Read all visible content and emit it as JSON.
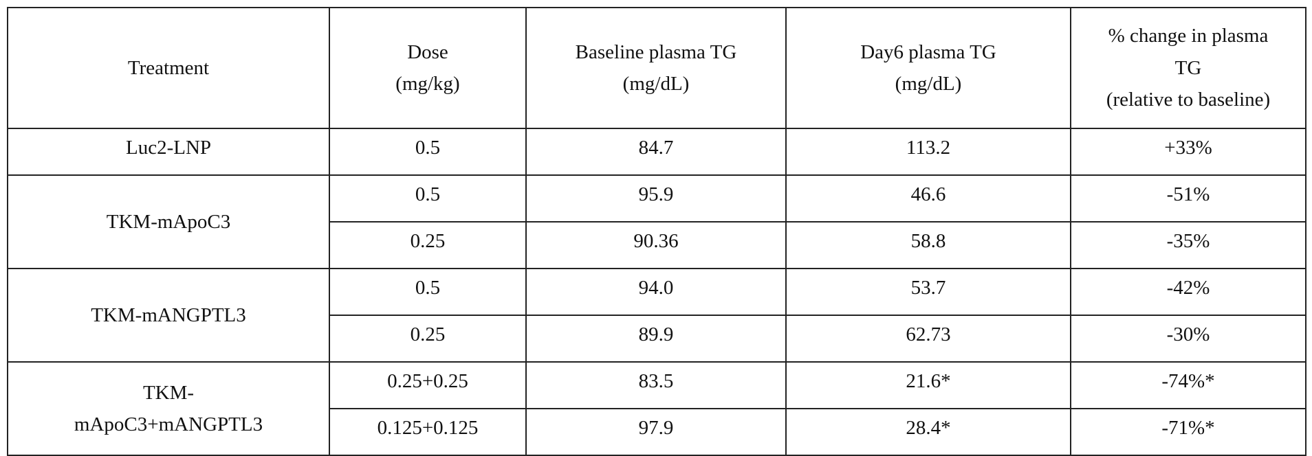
{
  "table": {
    "header": {
      "treatment": [
        "Treatment"
      ],
      "dose": [
        "Dose",
        "(mg/kg)"
      ],
      "baseline": [
        "Baseline plasma TG",
        "(mg/dL)"
      ],
      "day6": [
        "Day6 plasma TG",
        "(mg/dL)"
      ],
      "change": [
        "% change in plasma",
        "TG",
        "(relative to baseline)"
      ]
    },
    "groups": [
      {
        "treatment": [
          "Luc2-LNP"
        ],
        "rows": [
          {
            "dose": "0.5",
            "baseline": "84.7",
            "day6": "113.2",
            "change": "+33%"
          }
        ]
      },
      {
        "treatment": [
          "TKM-mApoC3"
        ],
        "rows": [
          {
            "dose": "0.5",
            "baseline": "95.9",
            "day6": "46.6",
            "change": "-51%"
          },
          {
            "dose": "0.25",
            "baseline": "90.36",
            "day6": "58.8",
            "change": "-35%"
          }
        ]
      },
      {
        "treatment": [
          "TKM-mANGPTL3"
        ],
        "rows": [
          {
            "dose": "0.5",
            "baseline": "94.0",
            "day6": "53.7",
            "change": "-42%"
          },
          {
            "dose": "0.25",
            "baseline": "89.9",
            "day6": "62.73",
            "change": "-30%"
          }
        ]
      },
      {
        "treatment": [
          "TKM-",
          "mApoC3+mANGPTL3"
        ],
        "rows": [
          {
            "dose": "0.25+0.25",
            "baseline": "83.5",
            "day6": "21.6*",
            "change": "-74%*"
          },
          {
            "dose": "0.125+0.125",
            "baseline": "97.9",
            "day6": "28.4*",
            "change": "-71%*"
          }
        ]
      }
    ]
  }
}
